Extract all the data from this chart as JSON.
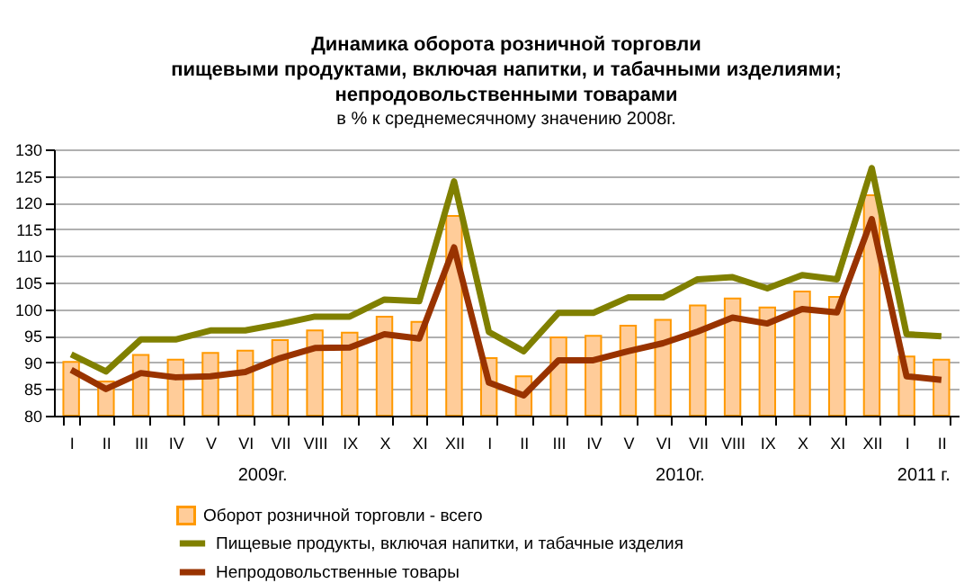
{
  "chart_data": {
    "type": "bar",
    "title": "Динамика оборота розничной торговли\nпищевыми продуктами, включая напитки, и табачными изделиями;\nнепродовольственными товарами",
    "subtitle": "в % к среднемесячному значению 2008г.",
    "categories": [
      "I",
      "II",
      "III",
      "IV",
      "V",
      "VI",
      "VII",
      "VIII",
      "IX",
      "X",
      "XI",
      "XII",
      "I",
      "II",
      "III",
      "IV",
      "V",
      "VI",
      "VII",
      "VIII",
      "IX",
      "X",
      "XI",
      "XII",
      "I",
      "II"
    ],
    "series": [
      {
        "name": "Оборот розничной торговли - всего",
        "color": "#ffcc99",
        "values": [
          90.1,
          86.4,
          91.4,
          90.5,
          91.8,
          92.2,
          94.2,
          96,
          95.6,
          98.6,
          97.6,
          117.5,
          90.8,
          87.4,
          94.7,
          95,
          96.9,
          98,
          100.7,
          102,
          100.3,
          103.3,
          102.3,
          121.4,
          91.1,
          90.5
        ]
      },
      {
        "name": "Пищевые продукты, включая напитки, и табачные изделия",
        "type": "line",
        "color": "#808000",
        "values": [
          91.5,
          88.3,
          94.3,
          94.3,
          96,
          96,
          97.2,
          98.6,
          98.6,
          101.8,
          101.5,
          124,
          95.7,
          92.1,
          99.3,
          99.3,
          102.2,
          102.2,
          105.6,
          106,
          103.9,
          106.4,
          105.6,
          126.5,
          95.3,
          94.9
        ]
      },
      {
        "name": "Непродовольственные товары",
        "type": "line",
        "color": "#993300",
        "values": [
          88.6,
          85,
          88,
          87.2,
          87.4,
          88.2,
          90.8,
          92.7,
          92.8,
          95.3,
          94.5,
          111.6,
          86.2,
          83.8,
          90.4,
          90.4,
          92.1,
          93.6,
          95.8,
          98.4,
          97.3,
          100,
          99.4,
          116.9,
          87.4,
          86.7
        ]
      }
    ],
    "annotations": [
      "2009г.",
      "2010г.",
      "2011 г."
    ],
    "ylim": [
      80,
      130
    ],
    "yticks": [
      80,
      85,
      90,
      95,
      100,
      105,
      110,
      115,
      120,
      125,
      130
    ],
    "grid": "y",
    "legend": "bottom",
    "marker": "none"
  }
}
